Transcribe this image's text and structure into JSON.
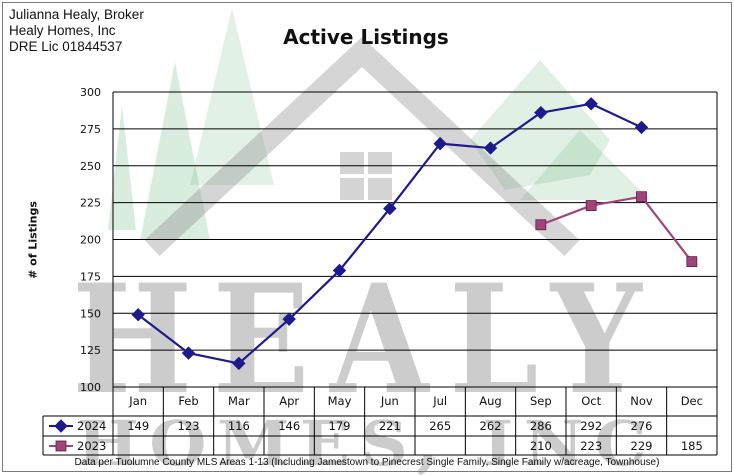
{
  "header": {
    "broker_name": "Julianna Healy, Broker",
    "company": "Healy Homes, Inc",
    "license": "DRE Lic 01844537"
  },
  "watermark": {
    "line1": "HEALY",
    "line2": "HOMES, INC"
  },
  "footnote": "Data per Tuolumne County MLS Areas 1-13 (Including Jamestown to Pinecrest Single Family, Single Family w/acreage, Townhouse)",
  "chart_data": {
    "type": "line",
    "title": "Active Listings",
    "ylabel": "# of Listings",
    "xlabel": "",
    "ylim": [
      100,
      300
    ],
    "yticks": [
      100,
      125,
      150,
      175,
      200,
      225,
      250,
      275,
      300
    ],
    "grid": true,
    "legend": "data-table",
    "categories": [
      "Jan",
      "Feb",
      "Mar",
      "Apr",
      "May",
      "Jun",
      "Jul",
      "Aug",
      "Sep",
      "Oct",
      "Nov",
      "Dec"
    ],
    "series": [
      {
        "name": "2024",
        "color": "#1f1a8c",
        "marker": "diamond",
        "values": [
          149,
          123,
          116,
          146,
          179,
          221,
          265,
          262,
          286,
          292,
          276,
          null
        ]
      },
      {
        "name": "2023",
        "color": "#a0457a",
        "marker": "square",
        "values": [
          null,
          null,
          null,
          null,
          null,
          null,
          null,
          null,
          210,
          223,
          229,
          185
        ]
      }
    ]
  }
}
